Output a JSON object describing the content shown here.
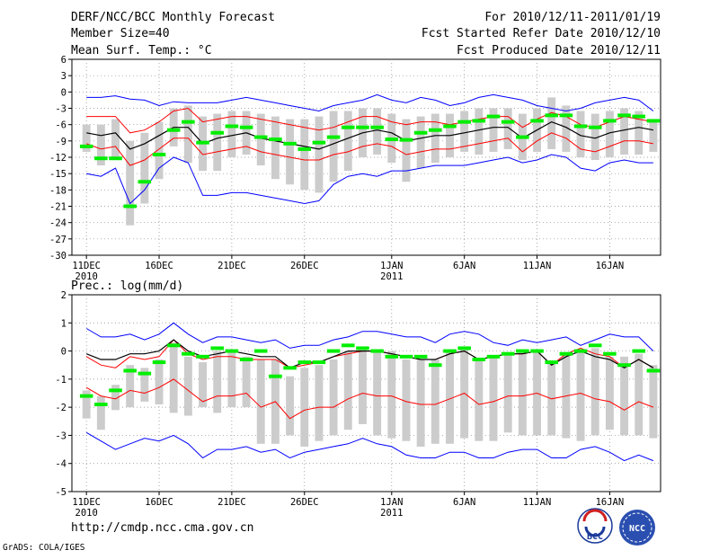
{
  "header": {
    "title": "DERF/NCC/BCC Monthly Forecast",
    "member_size": "Member Size=40",
    "variable": "Mean Surf. Temp.: °C",
    "forecast_period": "For 2010/12/11-2011/01/19",
    "start_date": "Fcst Started Refer Date 2010/12/10",
    "produced_date": "Fcst Produced Date 2010/12/11"
  },
  "footer": {
    "url": "http://cmdp.ncc.cma.gov.cn",
    "credit": "GrADS: COLA/IGES",
    "logo_left_text": "BCC",
    "logo_right_text": "NCC"
  },
  "colors": {
    "envelope": "#0000ff",
    "spread": "#ff0000",
    "mean": "#000000",
    "observed": "#00ee00",
    "box": "#cccccc",
    "grid": "#888888"
  },
  "chart_data": [
    {
      "type": "box-ensemble",
      "title": "Mean Surf. Temp.: °C",
      "xlabel": "",
      "ylabel": "",
      "ylim": [
        -30,
        6
      ],
      "yticks": [
        6,
        3,
        0,
        -3,
        -6,
        -9,
        -12,
        -15,
        -18,
        -21,
        -24,
        -27,
        -30
      ],
      "x_tick_labels": [
        "11DEC",
        "16DEC",
        "21DEC",
        "26DEC",
        "1JAN",
        "6JAN",
        "11JAN",
        "16JAN"
      ],
      "x_tick_days": [
        0,
        5,
        10,
        15,
        21,
        26,
        31,
        36
      ],
      "year_labels": [
        {
          "day": 0,
          "label": "2010"
        },
        {
          "day": 21,
          "label": "2011"
        }
      ],
      "grid": true,
      "days": 40,
      "ensemble_max": [
        -1,
        -1,
        -0.7,
        -1.3,
        -1.5,
        -2.5,
        -1.8,
        -2,
        -2,
        -2,
        -1.5,
        -1,
        -1.5,
        -2,
        -2.5,
        -3,
        -3.5,
        -2.5,
        -2,
        -1.5,
        -0.5,
        -1.5,
        -2,
        -1,
        -1.5,
        -2.5,
        -2,
        -1,
        -0.5,
        -1,
        -1.5,
        -2.5,
        -3,
        -3.5,
        -3,
        -2,
        -1.5,
        -1,
        -1.5,
        -3.5
      ],
      "upper_spread": [
        -4.5,
        -4.5,
        -4.5,
        -7.5,
        -7,
        -5.5,
        -3.5,
        -3,
        -5.5,
        -5,
        -4.5,
        -4.5,
        -5,
        -5.5,
        -6,
        -6.5,
        -7,
        -6.5,
        -5.5,
        -4.5,
        -4.5,
        -5.5,
        -6,
        -5.5,
        -5.5,
        -6,
        -5.5,
        -5,
        -4.5,
        -4.5,
        -6.5,
        -5,
        -3.8,
        -4.5,
        -6,
        -6.5,
        -5.5,
        -4.5,
        -5,
        -5.5
      ],
      "ensemble_mean": [
        -7.5,
        -8,
        -7.5,
        -10.5,
        -9.5,
        -8,
        -6.5,
        -6.5,
        -9.5,
        -8.5,
        -8,
        -7.5,
        -8.5,
        -9,
        -9.5,
        -10,
        -10.5,
        -9.5,
        -8.5,
        -7.5,
        -7,
        -7.5,
        -9,
        -8.5,
        -8,
        -8,
        -7.5,
        -7,
        -6.5,
        -6.5,
        -8.5,
        -7,
        -5.5,
        -6.5,
        -8,
        -8.5,
        -7.5,
        -7,
        -6.5,
        -7
      ],
      "lower_spread": [
        -9.5,
        -10.5,
        -10,
        -13.5,
        -12.5,
        -10.5,
        -8.5,
        -8.5,
        -11.5,
        -11,
        -10.5,
        -10,
        -11,
        -11.5,
        -12,
        -12.5,
        -12.5,
        -11.5,
        -11,
        -10,
        -9.5,
        -10,
        -11.5,
        -11,
        -10.5,
        -10.5,
        -10,
        -9.5,
        -9,
        -8.5,
        -11,
        -9,
        -7.5,
        -8.5,
        -10.5,
        -11,
        -10,
        -9,
        -9,
        -9.5
      ],
      "ensemble_min": [
        -15,
        -15.5,
        -14,
        -20.5,
        -18,
        -14,
        -12,
        -13,
        -19,
        -19,
        -18.5,
        -18.5,
        -19,
        -19.5,
        -20,
        -20.5,
        -20,
        -17,
        -15.5,
        -15,
        -15.5,
        -14.5,
        -14.5,
        -14,
        -13.5,
        -13.5,
        -13.5,
        -13,
        -12.5,
        -12,
        -13,
        -12.5,
        -11.5,
        -12,
        -14,
        -14.5,
        -13,
        -12.5,
        -13,
        -13
      ],
      "box_top": [
        -6,
        -6,
        -5,
        -9,
        -7.5,
        -5.5,
        -3,
        -2.5,
        -4.5,
        -4,
        -3.5,
        -3.5,
        -4,
        -4.5,
        -5,
        -5,
        -4.5,
        -3.5,
        -3.5,
        -3,
        -3,
        -4,
        -5,
        -4.5,
        -4,
        -4,
        -3.5,
        -3,
        -3,
        -3,
        -4,
        -3,
        -1,
        -2.5,
        -3.5,
        -4,
        -3.5,
        -3,
        -3.5,
        -5
      ],
      "box_bottom": [
        -11,
        -13.5,
        -12.5,
        -24.5,
        -20.5,
        -16,
        -10,
        -13,
        -14.5,
        -14.5,
        -12,
        -11.5,
        -13.5,
        -16,
        -17,
        -18,
        -18.5,
        -16.5,
        -14.5,
        -12,
        -11.5,
        -13,
        -16.5,
        -14,
        -13,
        -12,
        -11,
        -11.5,
        -11,
        -10.5,
        -12.5,
        -11,
        -10.5,
        -11,
        -12,
        -12.5,
        -12,
        -11.5,
        -11.5,
        -11
      ],
      "observed": [
        -10,
        -12.2,
        -12.2,
        -21,
        -16.5,
        -11.5,
        -7,
        -5.5,
        -9.3,
        -7.5,
        -6.3,
        -6.5,
        -8.3,
        -8.7,
        -9.5,
        -10.5,
        -9.3,
        -8.3,
        -6.5,
        -6.5,
        -6.5,
        -8.7,
        -8.8,
        -7.5,
        -7,
        -6.3,
        -5.5,
        -5.3,
        -4.5,
        -5.5,
        -8.3,
        -5.3,
        -4.3,
        -4.3,
        -6.3,
        -6.5,
        -5.3,
        -4.3,
        -4.5,
        -5.3
      ]
    },
    {
      "type": "box-ensemble",
      "title": "Prec.: log(mm/d)",
      "xlabel": "",
      "ylabel": "",
      "ylim": [
        -5,
        2
      ],
      "yticks": [
        2,
        1,
        0,
        -1,
        -2,
        -3,
        -4,
        -5
      ],
      "x_tick_labels": [
        "11DEC",
        "16DEC",
        "21DEC",
        "26DEC",
        "1JAN",
        "6JAN",
        "11JAN",
        "16JAN"
      ],
      "x_tick_days": [
        0,
        5,
        10,
        15,
        21,
        26,
        31,
        36
      ],
      "year_labels": [
        {
          "day": 0,
          "label": "2010"
        },
        {
          "day": 21,
          "label": "2011"
        }
      ],
      "grid": true,
      "days": 40,
      "ensemble_max": [
        0.8,
        0.5,
        0.5,
        0.6,
        0.4,
        0.6,
        1.0,
        0.6,
        0.3,
        0.5,
        0.5,
        0.4,
        0.3,
        0.4,
        0.1,
        0.2,
        0.2,
        0.4,
        0.5,
        0.7,
        0.7,
        0.6,
        0.5,
        0.5,
        0.3,
        0.6,
        0.7,
        0.6,
        0.3,
        0.2,
        0.4,
        0.3,
        0.4,
        0.5,
        0.2,
        0.4,
        0.6,
        0.5,
        0.5,
        0.0
      ],
      "upper_spread": [
        -0.2,
        -0.5,
        -0.6,
        -0.2,
        -0.3,
        -0.2,
        0.4,
        -0.1,
        -0.3,
        -0.2,
        -0.2,
        -0.3,
        -0.3,
        -0.3,
        -0.6,
        -0.5,
        -0.4,
        -0.2,
        -0.1,
        0.0,
        0.0,
        -0.1,
        -0.2,
        -0.3,
        -0.3,
        -0.1,
        0.0,
        -0.3,
        -0.2,
        -0.1,
        -0.1,
        0.0,
        -0.5,
        -0.1,
        0.1,
        -0.1,
        -0.2,
        -0.6,
        -0.3,
        -0.6
      ],
      "ensemble_mean": [
        -0.1,
        -0.3,
        -0.3,
        -0.1,
        -0.1,
        0.0,
        0.4,
        0.0,
        -0.2,
        -0.1,
        0.0,
        -0.1,
        -0.2,
        -0.2,
        -0.6,
        -0.4,
        -0.4,
        -0.2,
        0.0,
        0.0,
        0.0,
        -0.1,
        -0.2,
        -0.3,
        -0.3,
        -0.1,
        0.0,
        -0.3,
        -0.2,
        -0.1,
        -0.1,
        0.0,
        -0.5,
        -0.2,
        0.0,
        -0.2,
        -0.3,
        -0.6,
        -0.3,
        -0.6
      ],
      "lower_spread": [
        -1.3,
        -1.6,
        -1.7,
        -1.4,
        -1.5,
        -1.3,
        -1.0,
        -1.4,
        -1.8,
        -1.6,
        -1.6,
        -1.5,
        -2.0,
        -1.8,
        -2.4,
        -2.1,
        -2.0,
        -2.0,
        -1.7,
        -1.5,
        -1.6,
        -1.6,
        -1.8,
        -1.9,
        -1.9,
        -1.7,
        -1.5,
        -1.9,
        -1.8,
        -1.6,
        -1.6,
        -1.5,
        -1.7,
        -1.6,
        -1.5,
        -1.7,
        -1.8,
        -2.1,
        -1.8,
        -2.0
      ],
      "ensemble_min": [
        -2.9,
        -3.2,
        -3.5,
        -3.3,
        -3.1,
        -3.2,
        -3.0,
        -3.3,
        -3.8,
        -3.5,
        -3.5,
        -3.4,
        -3.6,
        -3.5,
        -3.8,
        -3.6,
        -3.5,
        -3.4,
        -3.3,
        -3.1,
        -3.3,
        -3.4,
        -3.7,
        -3.8,
        -3.8,
        -3.6,
        -3.6,
        -3.8,
        -3.8,
        -3.6,
        -3.5,
        -3.5,
        -3.8,
        -3.8,
        -3.5,
        -3.4,
        -3.6,
        -3.9,
        -3.7,
        -3.9
      ],
      "box_top": [
        -1.4,
        -1.6,
        -1.2,
        -0.5,
        -0.6,
        -0.3,
        0.3,
        -0.2,
        -0.4,
        0.0,
        0.0,
        -0.2,
        -0.3,
        -0.3,
        -0.9,
        -0.6,
        -0.5,
        -0.3,
        0.0,
        0.1,
        0.0,
        0.0,
        -0.3,
        -0.3,
        -0.3,
        0.0,
        0.1,
        -0.3,
        -0.2,
        -0.1,
        0.0,
        0.0,
        -0.4,
        -0.1,
        0.0,
        0.1,
        -0.2,
        -0.2,
        -0.1,
        -0.5
      ],
      "box_bottom": [
        -2.4,
        -2.8,
        -2.1,
        -2.0,
        -1.8,
        -1.9,
        -2.2,
        -2.3,
        -2.0,
        -2.2,
        -2.0,
        -2.0,
        -3.3,
        -3.3,
        -3.0,
        -3.4,
        -3.2,
        -3.0,
        -2.8,
        -2.6,
        -3.0,
        -3.1,
        -3.2,
        -3.4,
        -3.3,
        -3.3,
        -3.1,
        -3.2,
        -3.2,
        -2.9,
        -3.0,
        -3.0,
        -3.0,
        -3.1,
        -3.2,
        -3.0,
        -2.8,
        -3.0,
        -3.0,
        -3.1
      ],
      "observed": [
        -1.6,
        -1.9,
        -1.4,
        -0.7,
        -0.8,
        -0.4,
        0.2,
        -0.1,
        -0.2,
        0.1,
        0.0,
        -0.3,
        0.0,
        -0.9,
        -0.6,
        -0.4,
        -0.4,
        0.0,
        0.2,
        0.1,
        0.0,
        -0.2,
        -0.2,
        -0.2,
        -0.5,
        0.0,
        0.1,
        -0.3,
        -0.2,
        -0.1,
        0.0,
        0.0,
        -0.4,
        -0.1,
        0.0,
        0.2,
        -0.1,
        -0.5,
        0.0,
        -0.7
      ]
    }
  ]
}
